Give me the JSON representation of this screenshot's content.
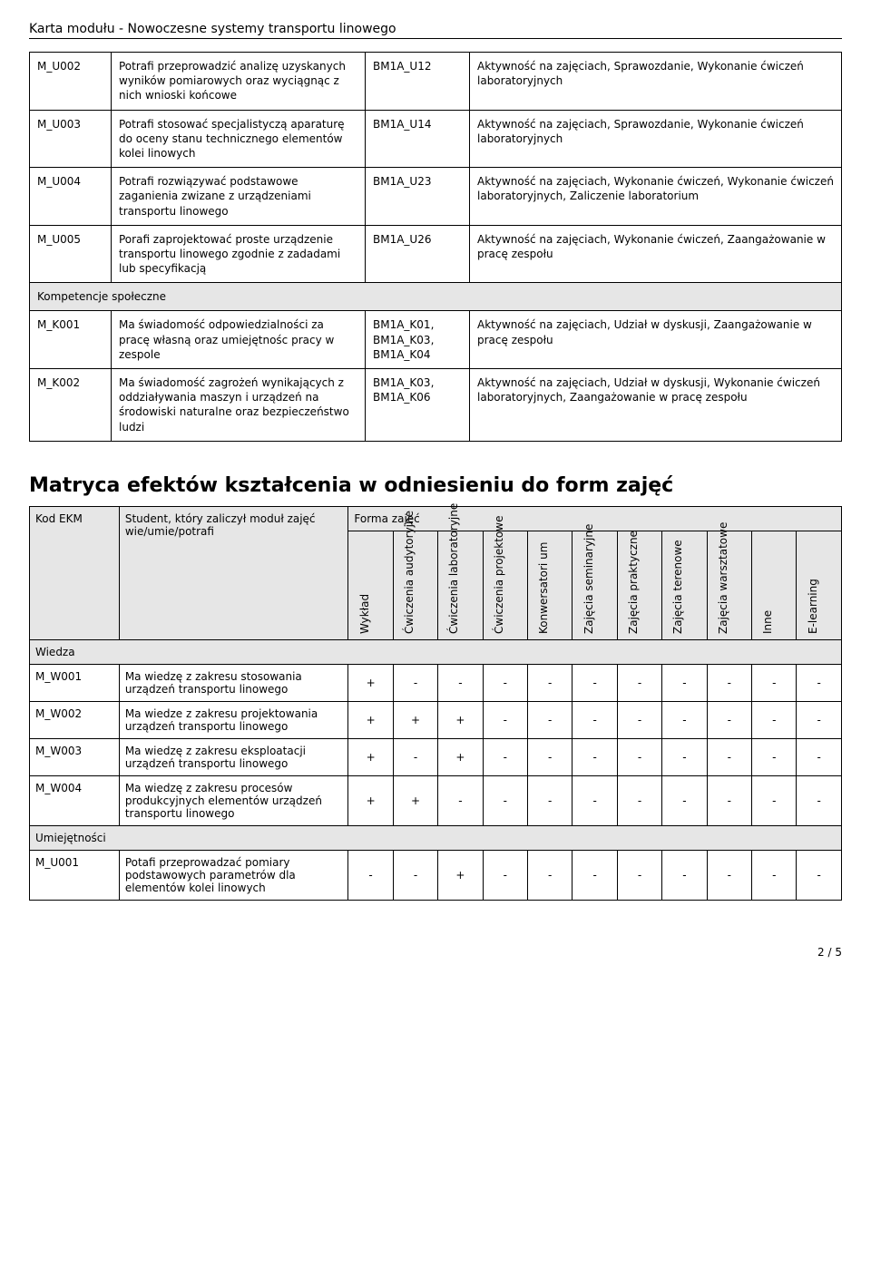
{
  "header_title": "Karta modułu - Nowoczesne systemy transportu linowego",
  "outcomes": [
    {
      "type": "row",
      "code": "M_U002",
      "desc": "Potrafi przeprowadzić analizę uzyskanych wyników pomiarowych oraz wyciągnąc z nich wnioski końcowe",
      "ref": "BM1A_U12",
      "verify": "Aktywność na zajęciach, Sprawozdanie, Wykonanie ćwiczeń laboratoryjnych"
    },
    {
      "type": "row",
      "code": "M_U003",
      "desc": "Potrafi stosować specjalistyczą aparaturę do oceny stanu technicznego elementów kolei linowych",
      "ref": "BM1A_U14",
      "verify": "Aktywność na zajęciach, Sprawozdanie, Wykonanie ćwiczeń laboratoryjnych"
    },
    {
      "type": "row",
      "code": "M_U004",
      "desc": "Potrafi rozwiązywać podstawowe zaganienia zwizane z urządzeniami transportu linowego",
      "ref": "BM1A_U23",
      "verify": "Aktywność na zajęciach, Wykonanie ćwiczeń, Wykonanie ćwiczeń laboratoryjnych, Zaliczenie laboratorium"
    },
    {
      "type": "row",
      "code": "M_U005",
      "desc": "Porafi zaprojektować proste urządzenie transportu linowego zgodnie z zadadami lub specyfikacją",
      "ref": "BM1A_U26",
      "verify": "Aktywność na zajęciach, Wykonanie ćwiczeń, Zaangażowanie w pracę zespołu"
    },
    {
      "type": "section",
      "label": "Kompetencje społeczne"
    },
    {
      "type": "row",
      "code": "M_K001",
      "desc": "Ma świadomość odpowiedzialności za pracę  własną oraz umiejętnośc pracy w zespole",
      "ref": "BM1A_K01, BM1A_K03, BM1A_K04",
      "verify": "Aktywność na zajęciach, Udział w dyskusji, Zaangażowanie w pracę zespołu"
    },
    {
      "type": "row",
      "code": "M_K002",
      "desc": "Ma świadomość zagrożeń wynikających z oddziaływania maszyn i urządzeń na środowiski naturalne oraz bezpieczeństwo ludzi",
      "ref": "BM1A_K03, BM1A_K06",
      "verify": "Aktywność na zajęciach, Udział w dyskusji, Wykonanie ćwiczeń laboratoryjnych, Zaangażowanie w pracę zespołu"
    }
  ],
  "matrix_title": "Matryca efektów kształcenia w odniesieniu do form zajęć",
  "matrix_head": {
    "code": "Kod EKM",
    "desc": "Student, który zaliczył moduł zajęć wie/umie/potrafi",
    "form": "Forma zajęć"
  },
  "matrix_forms": [
    "Wykład",
    "Ćwiczenia audytoryjne",
    "Ćwiczenia laboratoryjne",
    "Ćwiczenia projektowe",
    "Konwersatori um",
    "Zajęcia seminaryjne",
    "Zajęcia praktyczne",
    "Zajęcia terenowe",
    "Zajęcia warsztatowe",
    "Inne",
    "E-learning"
  ],
  "matrix_sections": [
    {
      "label": "Wiedza",
      "rows": [
        {
          "code": "M_W001",
          "desc": "Ma wiedzę z zakresu stosowania urządzeń transportu linowego",
          "cells": [
            "+",
            "-",
            "-",
            "-",
            "-",
            "-",
            "-",
            "-",
            "-",
            "-",
            "-"
          ]
        },
        {
          "code": "M_W002",
          "desc": "Ma wiedze z zakresu projektowania urządzeń transportu linowego",
          "cells": [
            "+",
            "+",
            "+",
            "-",
            "-",
            "-",
            "-",
            "-",
            "-",
            "-",
            "-"
          ]
        },
        {
          "code": "M_W003",
          "desc": "Ma wiedzę z zakresu eksploatacji urządzeń transportu linowego",
          "cells": [
            "+",
            "-",
            "+",
            "-",
            "-",
            "-",
            "-",
            "-",
            "-",
            "-",
            "-"
          ]
        },
        {
          "code": "M_W004",
          "desc": "Ma wiedzę z zakresu procesów produkcyjnych elementów urządzeń transportu linowego",
          "cells": [
            "+",
            "+",
            "-",
            "-",
            "-",
            "-",
            "-",
            "-",
            "-",
            "-",
            "-"
          ]
        }
      ]
    },
    {
      "label": "Umiejętności",
      "rows": [
        {
          "code": "M_U001",
          "desc": "Potafi przeprowadzać pomiary podstawowych parametrów dla elementów kolei linowych",
          "cells": [
            "-",
            "-",
            "+",
            "-",
            "-",
            "-",
            "-",
            "-",
            "-",
            "-",
            "-"
          ]
        }
      ]
    }
  ],
  "footer": "2 / 5"
}
